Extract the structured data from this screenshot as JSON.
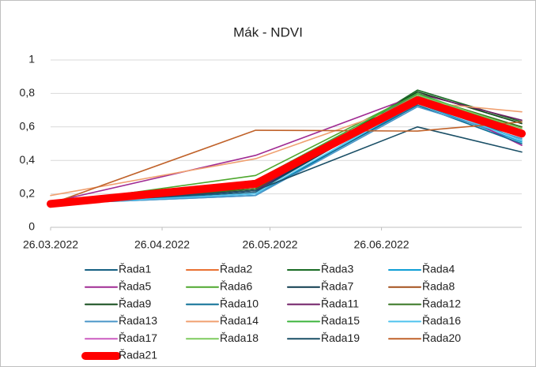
{
  "chart_data": {
    "type": "line",
    "title": "Mák - NDVI",
    "x": [
      "26.03.2022",
      "22.05.2022",
      "06.07.2022",
      "04.08.2022"
    ],
    "xlim": [
      "26.03.2022",
      "04.08.2022"
    ],
    "xticks": [
      "26.03.2022",
      "26.04.2022",
      "26.05.2022",
      "26.06.2022"
    ],
    "ylim": [
      0,
      1
    ],
    "yticks": [
      0,
      {
        "value": 0.2,
        "label": "0,2"
      },
      {
        "value": 0.4,
        "label": "0,4"
      },
      {
        "value": 0.6,
        "label": "0,6"
      },
      {
        "value": 0.8,
        "label": "0,8"
      },
      1
    ],
    "grid": true,
    "legend": "bottom",
    "series": [
      {
        "name": "Řada1",
        "color": "#156082",
        "values": [
          0.14,
          0.21,
          0.77,
          0.52
        ]
      },
      {
        "name": "Řada2",
        "color": "#E97132",
        "values": [
          0.15,
          0.22,
          0.78,
          0.55
        ]
      },
      {
        "name": "Řada3",
        "color": "#196B24",
        "values": [
          0.14,
          0.22,
          0.82,
          0.63
        ]
      },
      {
        "name": "Řada4",
        "color": "#0F9ED5",
        "values": [
          0.14,
          0.19,
          0.74,
          0.51
        ]
      },
      {
        "name": "Řada5",
        "color": "#A02B93",
        "values": [
          0.15,
          0.43,
          0.79,
          0.49
        ]
      },
      {
        "name": "Řada6",
        "color": "#4EA72E",
        "values": [
          0.14,
          0.31,
          0.8,
          0.57
        ]
      },
      {
        "name": "Řada7",
        "color": "#0D3A4E",
        "values": [
          0.14,
          0.22,
          0.76,
          0.54
        ]
      },
      {
        "name": "Řada8",
        "color": "#A3501C",
        "values": [
          0.14,
          0.24,
          0.78,
          0.6
        ]
      },
      {
        "name": "Řada9",
        "color": "#114A19",
        "values": [
          0.14,
          0.23,
          0.81,
          0.62
        ]
      },
      {
        "name": "Řada10",
        "color": "#0B6E95",
        "values": [
          0.14,
          0.2,
          0.73,
          0.5
        ]
      },
      {
        "name": "Řada11",
        "color": "#701E66",
        "values": [
          0.14,
          0.22,
          0.8,
          0.64
        ]
      },
      {
        "name": "Řada12",
        "color": "#367520",
        "values": [
          0.14,
          0.23,
          0.79,
          0.6
        ]
      },
      {
        "name": "Řada13",
        "color": "#4A96C8",
        "values": [
          0.14,
          0.19,
          0.72,
          0.53
        ]
      },
      {
        "name": "Řada14",
        "color": "#F0A070",
        "values": [
          0.19,
          0.41,
          0.75,
          0.69
        ]
      },
      {
        "name": "Řada15",
        "color": "#3CB43C",
        "values": [
          0.14,
          0.28,
          0.8,
          0.58
        ]
      },
      {
        "name": "Řada16",
        "color": "#4FC3EE",
        "values": [
          0.14,
          0.2,
          0.75,
          0.52
        ]
      },
      {
        "name": "Řada17",
        "color": "#CC5CC0",
        "values": [
          0.15,
          0.25,
          0.77,
          0.56
        ]
      },
      {
        "name": "Řada18",
        "color": "#7ECB5E",
        "values": [
          0.14,
          0.26,
          0.79,
          0.59
        ]
      },
      {
        "name": "Řada19",
        "color": "#1A4F66",
        "values": [
          0.14,
          0.22,
          0.6,
          0.45
        ]
      },
      {
        "name": "Řada20",
        "color": "#C0622A",
        "values": [
          0.14,
          0.58,
          0.575,
          0.63
        ]
      },
      {
        "name": "Řada21",
        "color": "#FF0000",
        "line_width": 10,
        "values": [
          0.14,
          0.26,
          0.76,
          0.56
        ]
      }
    ]
  }
}
